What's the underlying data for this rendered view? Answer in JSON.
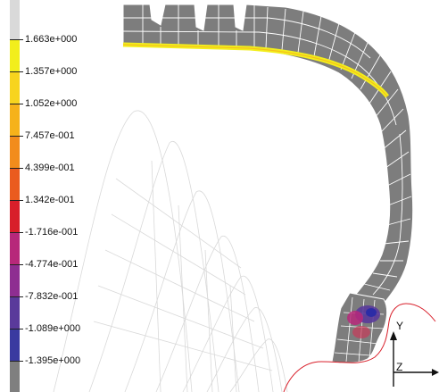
{
  "legend": {
    "labels": [
      "1.663e+000",
      "1.357e+000",
      "1.052e+000",
      "7.457e-001",
      "4.399e-001",
      "1.342e-001",
      "-1.716e-001",
      "-4.774e-001",
      "-7.832e-001",
      "-1.089e+000",
      "-1.395e+000"
    ],
    "colors": [
      "#d9d9d9",
      "#f2ee1c",
      "#f7d41e",
      "#f6b21a",
      "#f28c1c",
      "#ea5b1f",
      "#d81f2a",
      "#b7287a",
      "#8e2e91",
      "#5a3a9b",
      "#3a3aa0",
      "#7f7f7f"
    ]
  },
  "axes": {
    "y_label": "Y",
    "z_label": "Z"
  }
}
